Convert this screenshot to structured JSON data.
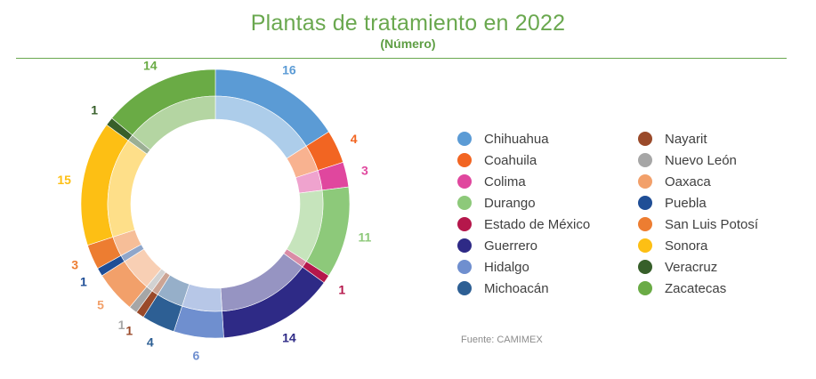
{
  "chart_data": {
    "type": "pie",
    "title": "Plantas de tratamiento en 2022",
    "subtitle": "(Número)",
    "source": "Fuente: CAMIMEX",
    "legend_position": "right",
    "categories": [
      "Chihuahua",
      "Coahuila",
      "Colima",
      "Durango",
      "Estado de México",
      "Guerrero",
      "Hidalgo",
      "Michoacán",
      "Nayarit",
      "Nuevo León",
      "Oaxaca",
      "Puebla",
      "San Luis Potosí",
      "Sonora",
      "Veracruz",
      "Zacatecas"
    ],
    "values": [
      16,
      4,
      3,
      11,
      1,
      14,
      6,
      4,
      1,
      1,
      5,
      1,
      3,
      15,
      1,
      14
    ],
    "colors": [
      "#5b9bd5",
      "#f26522",
      "#e0479e",
      "#8dc97a",
      "#b5174b",
      "#2e2a86",
      "#6f8fcf",
      "#2d5f94",
      "#9a4a2a",
      "#a6a6a6",
      "#f2a06a",
      "#1f4e96",
      "#ed7d31",
      "#fdbf14",
      "#375f2a",
      "#6aab45"
    ]
  }
}
